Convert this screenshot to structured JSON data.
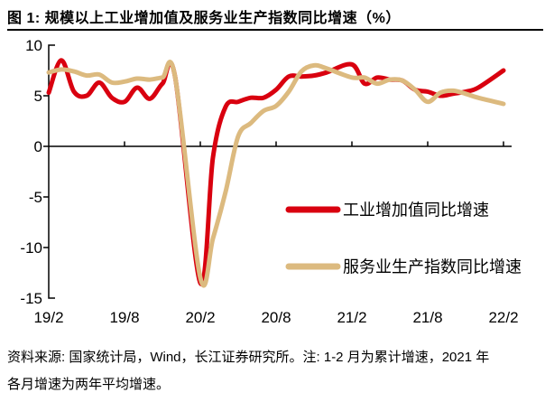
{
  "title": "图 1: 规模以上工业增加值及服务业生产指数同比增速（%）",
  "footer": {
    "line1": "资料来源: 国家统计局，Wind，长江证券研究所。注: 1-2 月为累计增速，2021 年",
    "line2": "各月增速为两年平均增速。"
  },
  "colors": {
    "axis": "#000000",
    "industry": "#d9000f",
    "services": "#dcba7f"
  },
  "chart_data": {
    "type": "line",
    "title": "规模以上工业增加值及服务业生产指数同比增速（%）",
    "xlabel": "",
    "ylabel": "",
    "ylim": [
      -15,
      10
    ],
    "grid": false,
    "legend_position": "center-right",
    "y_ticks": [
      10,
      5,
      0,
      -5,
      -10,
      -15
    ],
    "x_tick_labels": [
      "19/2",
      "19/8",
      "20/2",
      "20/8",
      "21/2",
      "21/8",
      "22/2"
    ],
    "x": [
      "19/2",
      "19/3",
      "19/4",
      "19/5",
      "19/6",
      "19/7",
      "19/8",
      "19/9",
      "19/10",
      "19/11",
      "19/12",
      "20/2",
      "20/3",
      "20/4",
      "20/5",
      "20/6",
      "20/7",
      "20/8",
      "20/9",
      "20/10",
      "20/11",
      "20/12",
      "21/2",
      "21/3",
      "21/4",
      "21/5",
      "21/6",
      "21/7",
      "21/8",
      "21/9",
      "21/10",
      "21/11",
      "21/12",
      "22/2"
    ],
    "series": [
      {
        "name": "工业增加值同比增速",
        "color": "#d9000f",
        "values": [
          5.3,
          8.5,
          5.4,
          5.0,
          6.3,
          4.8,
          4.4,
          5.8,
          4.7,
          6.2,
          6.9,
          -13.5,
          -1.1,
          3.9,
          4.4,
          4.8,
          4.8,
          5.6,
          6.9,
          6.9,
          7.0,
          7.3,
          8.1,
          6.2,
          6.8,
          6.6,
          6.5,
          5.6,
          5.4,
          5.0,
          5.2,
          5.4,
          5.8,
          7.5
        ]
      },
      {
        "name": "服务业生产指数同比增速",
        "color": "#dcba7f",
        "values": [
          7.3,
          7.6,
          7.4,
          7.0,
          7.1,
          6.3,
          6.4,
          6.7,
          6.6,
          6.8,
          6.9,
          -13.0,
          -9.1,
          -4.5,
          1.0,
          2.3,
          3.5,
          4.0,
          5.4,
          7.4,
          8.0,
          7.7,
          6.8,
          6.8,
          6.2,
          6.6,
          6.5,
          5.6,
          4.4,
          5.3,
          5.5,
          5.2,
          4.8,
          4.2
        ]
      }
    ]
  }
}
